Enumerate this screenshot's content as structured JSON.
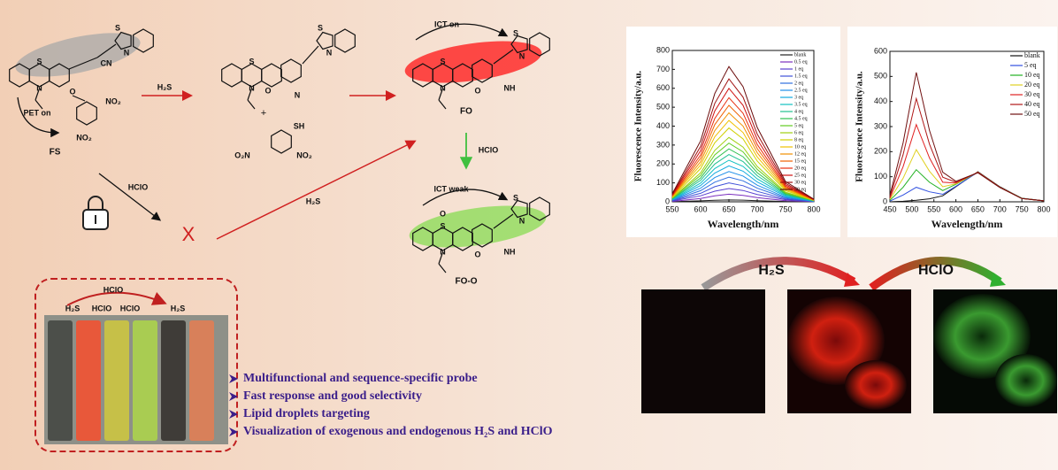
{
  "scheme": {
    "compounds": [
      "FS",
      "FO",
      "FO-O"
    ],
    "states": [
      "PET on",
      "ICT on",
      "ICT weak"
    ],
    "reagents": [
      "H₂S",
      "HClO",
      "HClO",
      "H₂S"
    ],
    "blocked": "X",
    "plus": "+",
    "atoms": [
      "S",
      "N",
      "O",
      "CN",
      "S",
      "N",
      "NO₂",
      "NO₂",
      "S",
      "N",
      "O",
      "N",
      "S",
      "N",
      "SH",
      "O₂N",
      "NO₂",
      "S",
      "N",
      "O",
      "NH",
      "S",
      "N",
      "O",
      "S",
      "N",
      "O",
      "NH",
      "S",
      "N"
    ]
  },
  "vials": {
    "top_label": "HClO",
    "labels": [
      "H₂S",
      "HClO",
      "HClO",
      "H₂S"
    ]
  },
  "highlights": [
    "Multifunctional and sequence-specific probe",
    "Fast response and good selectivity",
    "Lipid droplets targeting",
    "Visualization of exogenous and endogenous H₂S and HClO"
  ],
  "imaging": {
    "steps": [
      "H₂S",
      "HClO"
    ]
  },
  "chart_data": [
    {
      "type": "line",
      "xlabel": "Wavelength/nm",
      "ylabel": "Fluorescence Intensity/a.u.",
      "x": [
        550,
        600,
        625,
        650,
        675,
        700,
        750,
        800
      ],
      "xlim": [
        550,
        800
      ],
      "xticks": [
        550,
        600,
        650,
        700,
        750,
        800
      ],
      "ylim": [
        0,
        800
      ],
      "yticks": [
        0,
        100,
        200,
        300,
        400,
        500,
        600,
        700,
        800
      ],
      "series": [
        {
          "name": "blank",
          "color": "#222222",
          "values": [
            1,
            5,
            8,
            10,
            9,
            6,
            2,
            0
          ]
        },
        {
          "name": "0.5 eq",
          "color": "#7b2fbe",
          "values": [
            2,
            18,
            32,
            40,
            34,
            22,
            6,
            1
          ]
        },
        {
          "name": "1 eq",
          "color": "#5a3fd0",
          "values": [
            4,
            32,
            56,
            70,
            60,
            39,
            11,
            1
          ]
        },
        {
          "name": "1.5 eq",
          "color": "#3f51d8",
          "values": [
            6,
            45,
            80,
            100,
            85,
            55,
            15,
            2
          ]
        },
        {
          "name": "2 eq",
          "color": "#2f6fe0",
          "values": [
            8,
            59,
            104,
            130,
            111,
            72,
            20,
            3
          ]
        },
        {
          "name": "2.5 eq",
          "color": "#1f8fe8",
          "values": [
            10,
            72,
            128,
            160,
            136,
            88,
            24,
            3
          ]
        },
        {
          "name": "3 eq",
          "color": "#10aadf",
          "values": [
            11,
            86,
            152,
            190,
            162,
            105,
            29,
            4
          ]
        },
        {
          "name": "3.5 eq",
          "color": "#10c0c0",
          "values": [
            13,
            99,
            176,
            220,
            187,
            121,
            33,
            4
          ]
        },
        {
          "name": "4 eq",
          "color": "#20c090",
          "values": [
            15,
            113,
            200,
            250,
            213,
            138,
            38,
            5
          ]
        },
        {
          "name": "4.5 eq",
          "color": "#30c050",
          "values": [
            17,
            126,
            224,
            280,
            238,
            154,
            42,
            6
          ]
        },
        {
          "name": "5 eq",
          "color": "#60cc20",
          "values": [
            19,
            140,
            248,
            310,
            264,
            171,
            47,
            6
          ]
        },
        {
          "name": "6 eq",
          "color": "#a0d010",
          "values": [
            20,
            153,
            272,
            340,
            289,
            187,
            51,
            7
          ]
        },
        {
          "name": "8 eq",
          "color": "#d0d000",
          "values": [
            23,
            176,
            312,
            390,
            332,
            215,
            59,
            8
          ]
        },
        {
          "name": "10 eq",
          "color": "#f0c000",
          "values": [
            26,
            194,
            344,
            430,
            366,
            237,
            65,
            9
          ]
        },
        {
          "name": "12 eq",
          "color": "#f09000",
          "values": [
            28,
            212,
            376,
            470,
            400,
            259,
            71,
            9
          ]
        },
        {
          "name": "15 eq",
          "color": "#f06000",
          "values": [
            31,
            230,
            408,
            510,
            434,
            281,
            77,
            10
          ]
        },
        {
          "name": "20 eq",
          "color": "#e83010",
          "values": [
            33,
            248,
            440,
            550,
            468,
            303,
            83,
            11
          ]
        },
        {
          "name": "25 eq",
          "color": "#d01010",
          "values": [
            36,
            270,
            480,
            600,
            510,
            330,
            90,
            12
          ]
        },
        {
          "name": "30 eq",
          "color": "#a01010",
          "values": [
            39,
            293,
            520,
            650,
            553,
            358,
            98,
            13
          ]
        },
        {
          "name": "50 eq",
          "color": "#6a0a0a",
          "values": [
            43,
            322,
            572,
            715,
            608,
            393,
            107,
            14
          ]
        }
      ]
    },
    {
      "type": "line",
      "xlabel": "Wavelength/nm",
      "ylabel": "Fluorescence Intensity/a.u.",
      "x": [
        450,
        480,
        510,
        540,
        570,
        600,
        650,
        700,
        750,
        800
      ],
      "xlim": [
        450,
        800
      ],
      "xticks": [
        450,
        500,
        550,
        600,
        650,
        700,
        750,
        800
      ],
      "ylim": [
        0,
        600
      ],
      "yticks": [
        0,
        100,
        200,
        300,
        400,
        500,
        600
      ],
      "series": [
        {
          "name": "blank",
          "color": "#111111",
          "values": [
            0,
            2,
            6,
            12,
            24,
            60,
            120,
            60,
            14,
            4
          ]
        },
        {
          "name": "5 eq",
          "color": "#3050e0",
          "values": [
            3,
            27,
            58,
            40,
            30,
            62,
            118,
            58,
            14,
            4
          ]
        },
        {
          "name": "10 eq",
          "color": "#20b020",
          "values": [
            6,
            58,
            128,
            78,
            45,
            70,
            118,
            58,
            14,
            4
          ]
        },
        {
          "name": "20 eq",
          "color": "#e0d020",
          "values": [
            10,
            94,
            208,
            122,
            60,
            72,
            118,
            58,
            13,
            4
          ]
        },
        {
          "name": "30 eq",
          "color": "#e02020",
          "values": [
            15,
            140,
            308,
            175,
            78,
            75,
            118,
            58,
            13,
            4
          ]
        },
        {
          "name": "40 eq",
          "color": "#b01818",
          "values": [
            20,
            188,
            412,
            230,
            98,
            78,
            116,
            57,
            13,
            4
          ]
        },
        {
          "name": "50 eq",
          "color": "#701010",
          "values": [
            26,
            235,
            516,
            285,
            118,
            82,
            116,
            57,
            13,
            4
          ]
        }
      ]
    }
  ]
}
